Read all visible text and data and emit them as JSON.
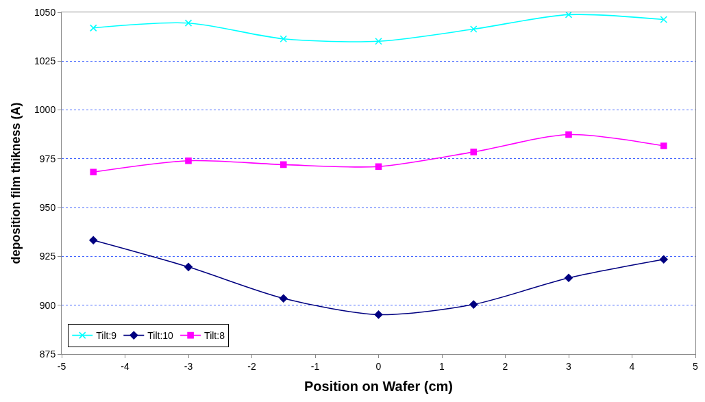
{
  "chart_data": {
    "type": "line",
    "xlabel": "Position on Wafer (cm)",
    "ylabel": "deposition film thikness (A)",
    "x": [
      -4.5,
      -3,
      -1.5,
      0,
      1.5,
      3,
      4.5
    ],
    "series": [
      {
        "name": "Tilt:9",
        "color": "#00ffff",
        "marker": "cross",
        "values": [
          1042,
          1044.5,
          1036.4,
          1035.2,
          1041.4,
          1048.8,
          1046.3
        ]
      },
      {
        "name": "Tilt:10",
        "color": "#000080",
        "marker": "diamond",
        "values": [
          933.3,
          919.6,
          903.5,
          895.2,
          900.4,
          914,
          923.5
        ]
      },
      {
        "name": "Tilt:8",
        "color": "#ff00ff",
        "marker": "square",
        "values": [
          968.2,
          974,
          972,
          971,
          978.5,
          987.4,
          981.6
        ]
      }
    ],
    "xlim": [
      -5,
      5
    ],
    "xticks": [
      -5,
      -4,
      -3,
      -2,
      -1,
      0,
      1,
      2,
      3,
      4,
      5
    ],
    "ylim": [
      875,
      1050
    ],
    "yticks": [
      875,
      900,
      925,
      950,
      975,
      1000,
      1025,
      1050
    ],
    "grid": "y",
    "legend": "bottom left",
    "line_style": "solid"
  }
}
